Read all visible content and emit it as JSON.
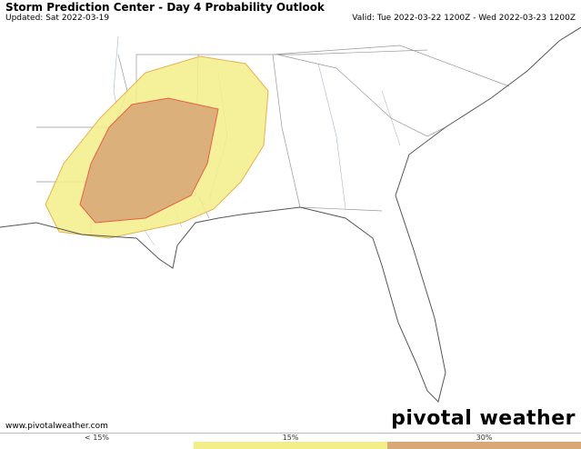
{
  "header": {
    "title": "Storm Prediction Center - Day 4 Probability Outlook",
    "updated": "Updated: Sat 2022-03-19",
    "valid": "Valid: Tue 2022-03-22 1200Z - Wed 2022-03-23 1200Z"
  },
  "footer": {
    "url": "www.pivotalweather.com",
    "logo": "pivotal weather"
  },
  "legend": {
    "items": [
      {
        "label": "< 15%",
        "color": "#ffffff"
      },
      {
        "label": "15%",
        "color": "#f3ee8a"
      },
      {
        "label": "30%",
        "color": "#d9a878"
      }
    ]
  }
}
